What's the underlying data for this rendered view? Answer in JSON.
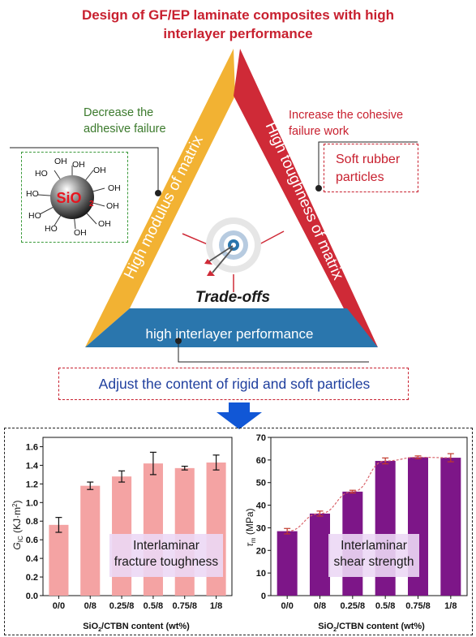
{
  "header": {
    "title_line1": "Design of GF/EP laminate composites with high",
    "title_line2": "interlayer performance"
  },
  "triangle": {
    "left_side_label": "High modulus of matrix",
    "right_side_label": "High toughness of matrix",
    "bottom_side_label": "high interlayer performance",
    "center_label": "Trade-offs",
    "colors": {
      "left": "#f2b233",
      "right": "#cf2a37",
      "bottom": "#2a76ad"
    }
  },
  "annotations": {
    "left_note_line1": "Decrease the",
    "left_note_line2": "adhesive failure",
    "right_note_line1": "Increase the cohesive",
    "right_note_line2": "failure work",
    "soft_rubber_line1": "Soft rubber",
    "soft_rubber_line2": "particles",
    "adjust_text": "Adjust the content of rigid and soft particles"
  },
  "molecule": {
    "core_label": "SiO",
    "core_subscript": "2",
    "groups": [
      "OH",
      "OH",
      "OH",
      "HO",
      "OH",
      "HO",
      "OH",
      "HO",
      "OH",
      "HO",
      "OH",
      "HO",
      "OH"
    ]
  },
  "chart_data": [
    {
      "type": "bar",
      "categories": [
        "0/0",
        "0/8",
        "0.25/8",
        "0.5/8",
        "0.75/8",
        "1/8"
      ],
      "values": [
        0.76,
        1.18,
        1.28,
        1.42,
        1.37,
        1.43
      ],
      "errors": [
        0.08,
        0.04,
        0.06,
        0.12,
        0.02,
        0.08
      ],
      "ylim": [
        0.0,
        1.7
      ],
      "yticks": [
        "0.0",
        "0.2",
        "0.4",
        "0.6",
        "0.8",
        "1.0",
        "1.2",
        "1.4",
        "1.6"
      ],
      "xlabel_main": "SiO",
      "xlabel_sub": "2",
      "xlabel_rest": "/CTBN content (wt%)",
      "ylabel_main": "G",
      "ylabel_sub": "IC",
      "ylabel_rest": " (KJ·m",
      "ylabel_sup": "2",
      "ylabel_end": ")",
      "panel_label_line1": "Interlaminar",
      "panel_label_line2": "fracture toughness",
      "bar_color": "#f4a3a3"
    },
    {
      "type": "bar",
      "categories": [
        "0/0",
        "0/8",
        "0.25/8",
        "0.5/8",
        "0.75/8",
        "1/8"
      ],
      "values": [
        28.5,
        36.3,
        46.0,
        59.6,
        61.2,
        61.0
      ],
      "errors": [
        1.2,
        1.1,
        0.6,
        1.3,
        0.6,
        1.8
      ],
      "ylim": [
        0,
        70
      ],
      "yticks": [
        "0",
        "10",
        "20",
        "30",
        "40",
        "50",
        "60",
        "70"
      ],
      "xlabel_main": "SiO",
      "xlabel_sub": "2",
      "xlabel_rest": "/CTBN content (wt%)",
      "ylabel_main": "τ",
      "ylabel_sub": "m",
      "ylabel_rest": " (MPa)",
      "panel_label_line1": "Interlaminar",
      "panel_label_line2": "shear strength",
      "bar_color": "#7d1688",
      "trend_color": "#d9646b"
    }
  ]
}
